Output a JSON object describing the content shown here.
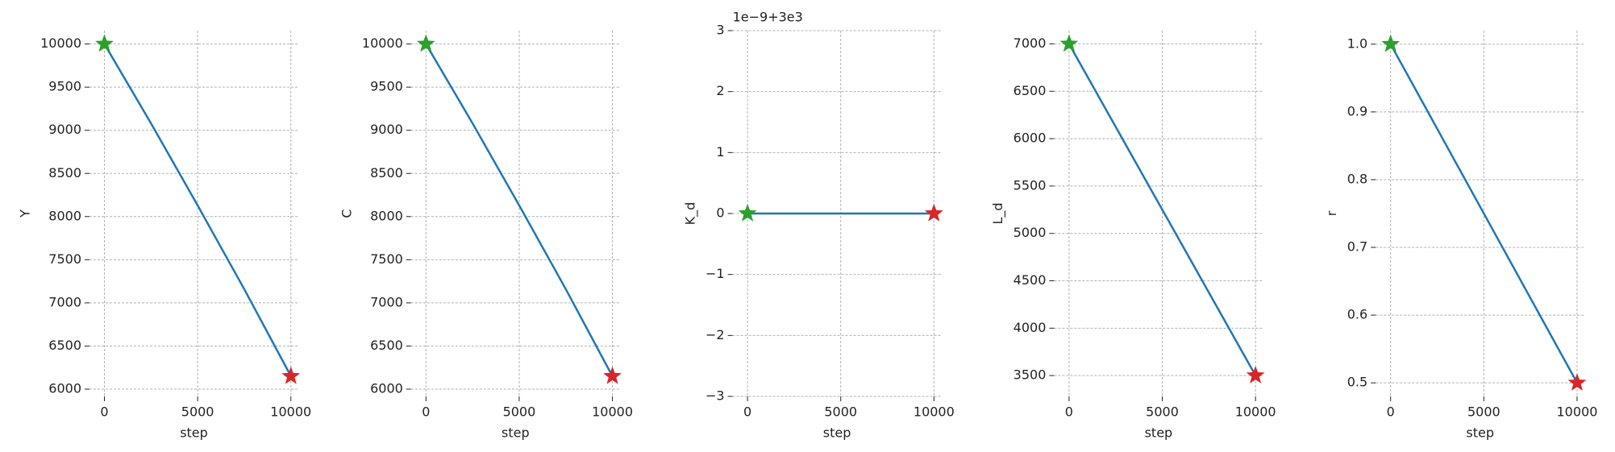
{
  "chart_data": [
    {
      "type": "line",
      "xlabel": "step",
      "ylabel": "Y",
      "x": [
        0,
        2500,
        5000,
        7500,
        10000
      ],
      "values": [
        10000,
        9080,
        8130,
        7160,
        6150
      ],
      "color": "#1f77b4",
      "start_marker_color": "#2ca02c",
      "end_marker_color": "#d62728",
      "xlim": [
        -800,
        10400
      ],
      "ylim": [
        5916,
        10155
      ],
      "xticks": [
        0,
        5000,
        10000
      ],
      "yticks": [
        6000,
        6500,
        7000,
        7500,
        8000,
        8500,
        9000,
        9500,
        10000
      ],
      "grid": true
    },
    {
      "type": "line",
      "xlabel": "step",
      "ylabel": "C",
      "x": [
        0,
        2500,
        5000,
        7500,
        10000
      ],
      "values": [
        10000,
        9080,
        8130,
        7160,
        6150
      ],
      "color": "#1f77b4",
      "start_marker_color": "#2ca02c",
      "end_marker_color": "#d62728",
      "xlim": [
        -800,
        10400
      ],
      "ylim": [
        5916,
        10155
      ],
      "xticks": [
        0,
        5000,
        10000
      ],
      "yticks": [
        6000,
        6500,
        7000,
        7500,
        8000,
        8500,
        9000,
        9500,
        10000
      ],
      "grid": true
    },
    {
      "type": "line",
      "xlabel": "step",
      "ylabel": "K_d",
      "offset_text": "1e−9+3e3",
      "x": [
        0,
        10000
      ],
      "values": [
        0,
        0
      ],
      "color": "#1f77b4",
      "start_marker_color": "#2ca02c",
      "end_marker_color": "#d62728",
      "xlim": [
        -800,
        10400
      ],
      "ylim": [
        -3,
        3
      ],
      "xticks": [
        0,
        5000,
        10000
      ],
      "yticks": [
        {
          "value": -3,
          "label": "−3"
        },
        {
          "value": -2,
          "label": "−2"
        },
        {
          "value": -1,
          "label": "−1"
        },
        0,
        1,
        2,
        3
      ],
      "grid": true
    },
    {
      "type": "line",
      "xlabel": "step",
      "ylabel": "L_d",
      "x": [
        0,
        10000
      ],
      "values": [
        7000,
        3500
      ],
      "color": "#1f77b4",
      "start_marker_color": "#2ca02c",
      "end_marker_color": "#d62728",
      "xlim": [
        -800,
        10400
      ],
      "ylim": [
        3280,
        7140
      ],
      "xticks": [
        0,
        5000,
        10000
      ],
      "yticks": [
        3500,
        4000,
        4500,
        5000,
        5500,
        6000,
        6500,
        7000
      ],
      "grid": true
    },
    {
      "type": "line",
      "xlabel": "step",
      "ylabel": "r",
      "x": [
        0,
        10000
      ],
      "values": [
        1.0,
        0.5
      ],
      "color": "#1f77b4",
      "start_marker_color": "#2ca02c",
      "end_marker_color": "#d62728",
      "xlim": [
        -800,
        10400
      ],
      "ylim": [
        0.48,
        1.02
      ],
      "xticks": [
        0,
        5000,
        10000
      ],
      "yticks": [
        0.5,
        0.6,
        0.7,
        0.8,
        0.9,
        {
          "value": 1,
          "label": "1.0"
        }
      ],
      "grid": true
    }
  ]
}
